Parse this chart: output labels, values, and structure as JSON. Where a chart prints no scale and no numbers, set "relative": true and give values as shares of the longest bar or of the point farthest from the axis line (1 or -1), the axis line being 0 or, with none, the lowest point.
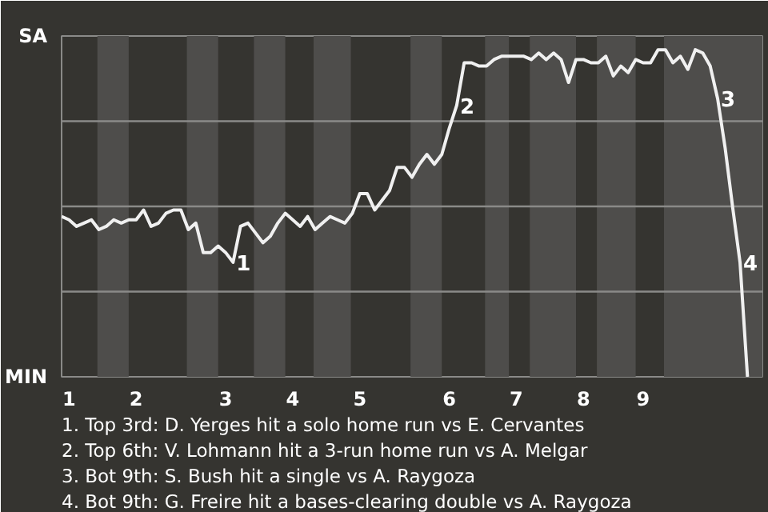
{
  "chart_data": {
    "type": "line",
    "relative": true,
    "grid": "y",
    "categories": [
      null,
      "1",
      null,
      null,
      null,
      null,
      null,
      null,
      null,
      null,
      "2",
      null,
      null,
      null,
      null,
      null,
      null,
      null,
      null,
      null,
      null,
      null,
      "3",
      null,
      null,
      null,
      null,
      null,
      null,
      null,
      null,
      "4",
      null,
      null,
      null,
      null,
      null,
      null,
      null,
      null,
      "5",
      null,
      null,
      null,
      null,
      null,
      null,
      null,
      null,
      null,
      null,
      null,
      "6",
      null,
      null,
      null,
      null,
      null,
      null,
      null,
      null,
      "7",
      null,
      null,
      null,
      null,
      null,
      null,
      null,
      null,
      "8",
      null,
      null,
      null,
      null,
      null,
      null,
      null,
      "9",
      null,
      null,
      null,
      null,
      null,
      null,
      null,
      null,
      null,
      null,
      null,
      null,
      null,
      null
    ],
    "series": [
      {
        "color": "#f0f0f0",
        "values": [
          0.49,
          0.48,
          0.46,
          0.47,
          0.48,
          0.45,
          0.46,
          0.48,
          0.47,
          0.48,
          0.48,
          0.51,
          0.46,
          0.47,
          0.5,
          0.51,
          0.51,
          0.45,
          0.47,
          0.38,
          0.38,
          0.4,
          0.38,
          0.35,
          0.46,
          0.47,
          0.44,
          0.41,
          0.43,
          0.47,
          0.5,
          0.48,
          0.46,
          0.49,
          0.45,
          0.47,
          0.49,
          0.48,
          0.47,
          0.5,
          0.56,
          0.56,
          0.51,
          0.54,
          0.57,
          0.64,
          0.64,
          0.61,
          0.65,
          0.68,
          0.65,
          0.68,
          0.76,
          0.83,
          0.96,
          0.96,
          0.95,
          0.95,
          0.97,
          0.98,
          0.98,
          0.98,
          0.98,
          0.97,
          0.99,
          0.97,
          0.99,
          0.97,
          0.9,
          0.97,
          0.97,
          0.96,
          0.96,
          0.98,
          0.92,
          0.95,
          0.93,
          0.97,
          0.96,
          0.96,
          1,
          1,
          0.96,
          0.98,
          0.94,
          1,
          0.99,
          0.95,
          0.85,
          0.7,
          0.52,
          0.35,
          0
        ]
      }
    ],
    "marker": "none",
    "line_style": "solid",
    "annotations": [
      "SA",
      "MIN",
      "1",
      "2",
      "3",
      "4",
      "1. Top 3rd: D. Yerges hit a solo home run vs E. Cervantes",
      "2. Top 6th: V. Lohmann hit a 3-run home run vs A. Melgar",
      "3. Bot 9th: S. Bush hit a single vs A. Raygoza",
      "4. Bot 9th: G. Freire hit a bases-clearing double vs A. Raygoza"
    ]
  }
}
